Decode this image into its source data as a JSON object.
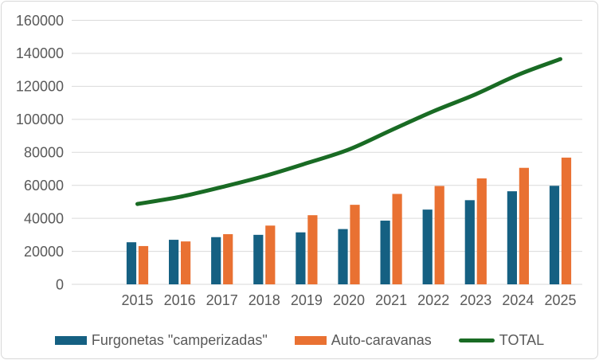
{
  "chart_data": {
    "type": "combo",
    "title": "",
    "xlabel": "",
    "ylabel": "",
    "categories": [
      "2015",
      "2016",
      "2017",
      "2018",
      "2019",
      "2020",
      "2021",
      "2022",
      "2023",
      "2024",
      "2025"
    ],
    "series": [
      {
        "name": "Furgonetas \"camperizadas\"",
        "type": "bar",
        "color": "#156082",
        "values": [
          25500,
          27000,
          28600,
          30000,
          31500,
          33500,
          38600,
          45300,
          51000,
          56400,
          59700
        ]
      },
      {
        "name": "Auto-caravanas",
        "type": "bar",
        "color": "#E97132",
        "values": [
          23200,
          26000,
          30400,
          35600,
          41900,
          48200,
          54800,
          59600,
          64200,
          70600,
          76800
        ]
      },
      {
        "name": "TOTAL",
        "type": "line",
        "color": "#196B24",
        "values": [
          48700,
          53000,
          59000,
          65600,
          73400,
          81700,
          93400,
          104900,
          115200,
          127000,
          136500
        ]
      }
    ],
    "ylim": [
      0,
      160000
    ],
    "yticks": [
      0,
      20000,
      40000,
      60000,
      80000,
      100000,
      120000,
      140000,
      160000
    ],
    "grid": true,
    "legend_position": "bottom",
    "axis_text_color": "#595959",
    "gridline_color": "#DADADA",
    "background_color": "#FFFFFF",
    "border_color": "#D8D8D8"
  }
}
